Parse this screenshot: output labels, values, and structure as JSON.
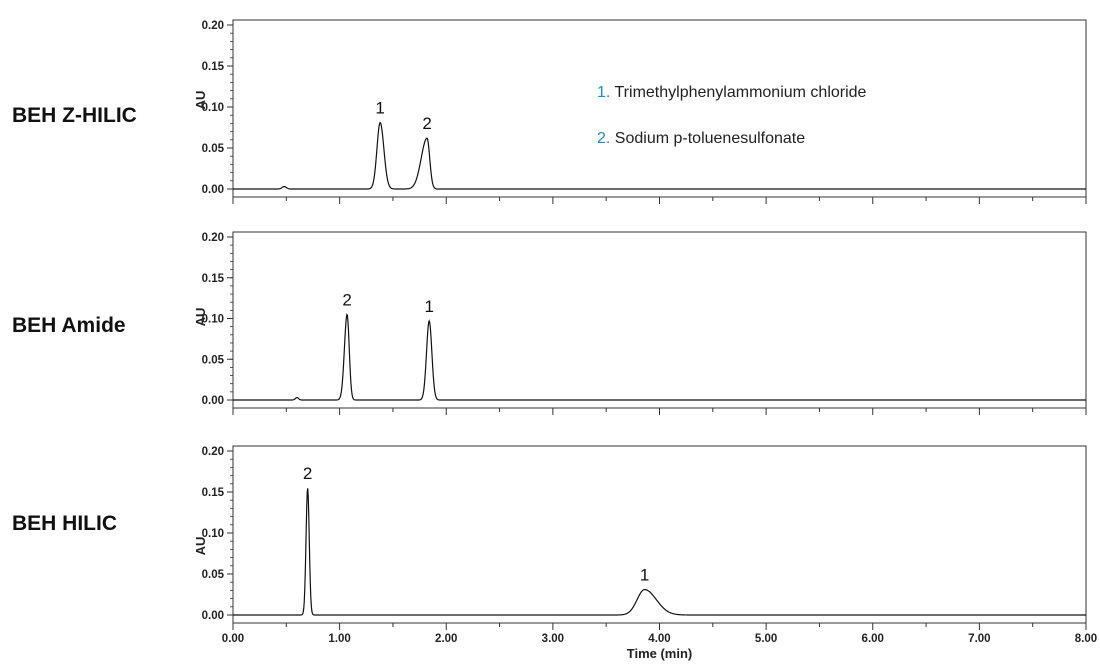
{
  "chart_data": {
    "type": "line",
    "xlabel": "Time (min)",
    "xlim": [
      0,
      8
    ],
    "x_ticks": [
      "0.00",
      "1.00",
      "2.00",
      "3.00",
      "4.00",
      "5.00",
      "6.00",
      "7.00",
      "8.00"
    ],
    "x_tick_values": [
      0,
      1,
      2,
      3,
      4,
      5,
      6,
      7,
      8
    ],
    "legend": {
      "placement": "top-center",
      "number_color": "#1a8fc6",
      "items": [
        {
          "number": "1.",
          "label": "Trimethylphenylammonium chloride"
        },
        {
          "number": "2.",
          "label": "Sodium p-toluenesulfonate"
        }
      ]
    },
    "panels": [
      {
        "name": "BEH Z-HILIC",
        "ylabel": "AU",
        "ylim": [
          0,
          0.2
        ],
        "y_ticks": [
          "0.00",
          "0.05",
          "0.10",
          "0.15",
          "0.20"
        ],
        "y_tick_values": [
          0,
          0.05,
          0.1,
          0.15,
          0.2
        ],
        "baseline": 0.0,
        "peaks": [
          {
            "label": "",
            "time": 0.48,
            "height": 0.003,
            "width_left": 0.02,
            "width_right": 0.02
          },
          {
            "label": "1",
            "time": 1.38,
            "height": 0.081,
            "width_left": 0.03,
            "width_right": 0.035
          },
          {
            "label": "2",
            "time": 1.82,
            "height": 0.062,
            "width_left": 0.055,
            "width_right": 0.025
          }
        ]
      },
      {
        "name": "BEH Amide",
        "ylabel": "AU",
        "ylim": [
          0,
          0.2
        ],
        "y_ticks": [
          "0.00",
          "0.05",
          "0.10",
          "0.15",
          "0.20"
        ],
        "y_tick_values": [
          0,
          0.05,
          0.1,
          0.15,
          0.2
        ],
        "baseline": 0.0,
        "peaks": [
          {
            "label": "",
            "time": 0.6,
            "height": 0.003,
            "width_left": 0.015,
            "width_right": 0.015
          },
          {
            "label": "2",
            "time": 1.07,
            "height": 0.105,
            "width_left": 0.025,
            "width_right": 0.02
          },
          {
            "label": "1",
            "time": 1.84,
            "height": 0.097,
            "width_left": 0.025,
            "width_right": 0.025
          }
        ]
      },
      {
        "name": "BEH HILIC",
        "ylabel": "AU",
        "ylim": [
          0,
          0.2
        ],
        "y_ticks": [
          "0.00",
          "0.05",
          "0.10",
          "0.15",
          "0.20"
        ],
        "y_tick_values": [
          0,
          0.05,
          0.1,
          0.15,
          0.2
        ],
        "baseline": 0.0,
        "peaks": [
          {
            "label": "2",
            "time": 0.7,
            "height": 0.155,
            "width_left": 0.015,
            "width_right": 0.015
          },
          {
            "label": "1",
            "time": 3.86,
            "height": 0.031,
            "width_left": 0.07,
            "width_right": 0.11
          }
        ]
      }
    ]
  }
}
